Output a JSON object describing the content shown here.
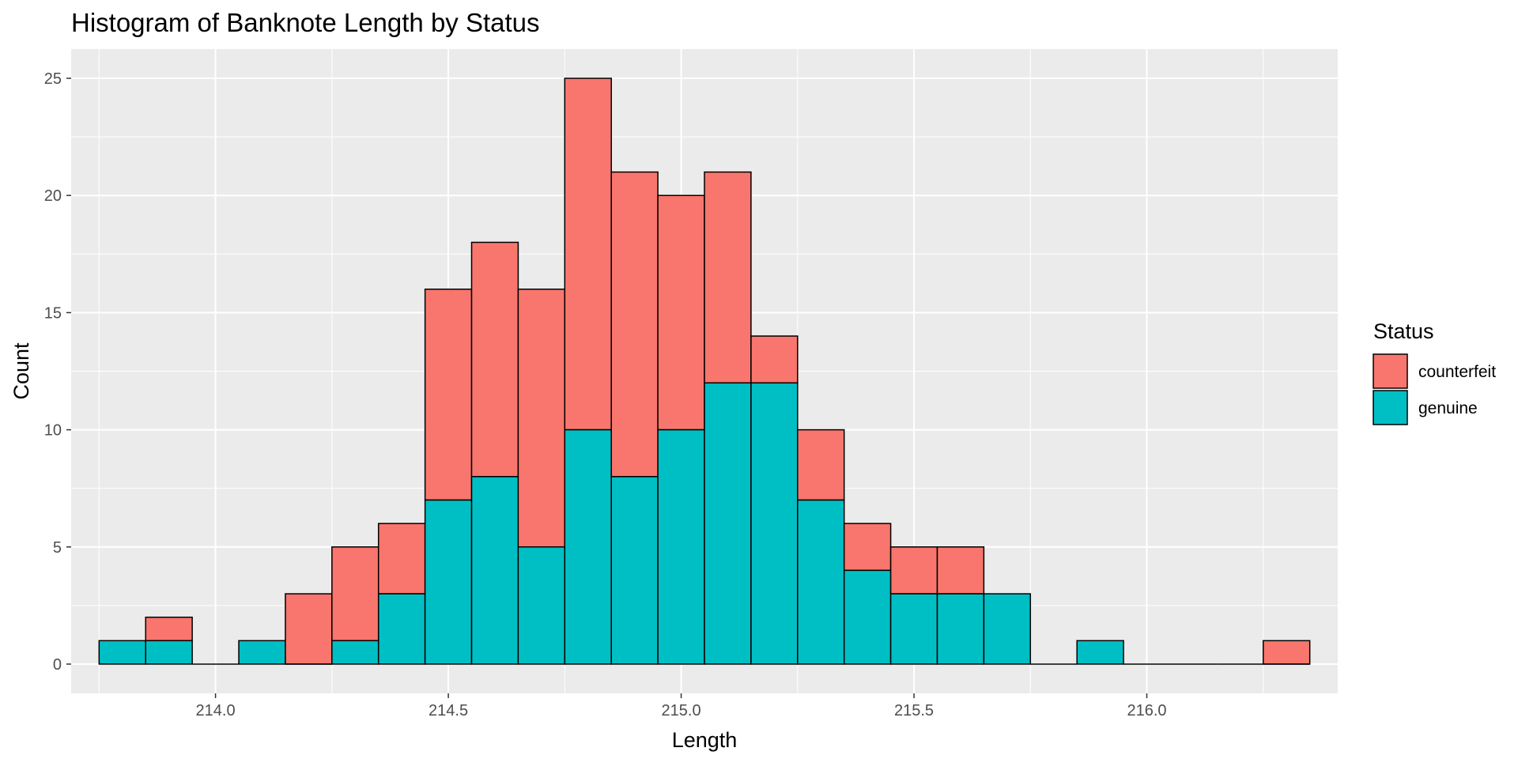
{
  "chart_data": {
    "type": "bar",
    "stacked": true,
    "title": "Histogram of Banknote Length by Status",
    "xlabel": "Length",
    "ylabel": "Count",
    "xlim": [
      213.69,
      216.41
    ],
    "ylim": [
      -1.25,
      26.25
    ],
    "x_ticks": [
      "214.0",
      "214.5",
      "215.0",
      "215.5",
      "216.0"
    ],
    "y_ticks": [
      "0",
      "5",
      "10",
      "15",
      "20",
      "25"
    ],
    "bin_width": 0.1,
    "bin_centers": [
      213.8,
      213.9,
      214.0,
      214.1,
      214.2,
      214.3,
      214.4,
      214.5,
      214.6,
      214.7,
      214.8,
      214.9,
      215.0,
      215.1,
      215.2,
      215.3,
      215.4,
      215.5,
      215.6,
      215.7,
      215.8,
      215.9,
      216.0,
      216.1,
      216.2,
      216.3
    ],
    "series": [
      {
        "name": "genuine",
        "color": "#00BFC4",
        "values": [
          1,
          1,
          0,
          1,
          0,
          1,
          3,
          7,
          8,
          5,
          10,
          8,
          10,
          12,
          12,
          7,
          4,
          3,
          3,
          3,
          0,
          1,
          0,
          0,
          0,
          0
        ]
      },
      {
        "name": "counterfeit",
        "color": "#F8766D",
        "values": [
          0,
          1,
          0,
          0,
          3,
          4,
          3,
          9,
          10,
          11,
          15,
          13,
          10,
          9,
          2,
          3,
          2,
          2,
          2,
          0,
          0,
          0,
          0,
          0,
          0,
          1
        ]
      }
    ],
    "grid": true,
    "legend": {
      "title": "Status",
      "position": "right",
      "items": [
        {
          "label": "counterfeit",
          "color": "#F8766D"
        },
        {
          "label": "genuine",
          "color": "#00BFC4"
        }
      ]
    },
    "colors": {
      "panel_bg": "#EBEBEB",
      "grid": "#FFFFFF",
      "bar_outline": "#000000"
    }
  }
}
